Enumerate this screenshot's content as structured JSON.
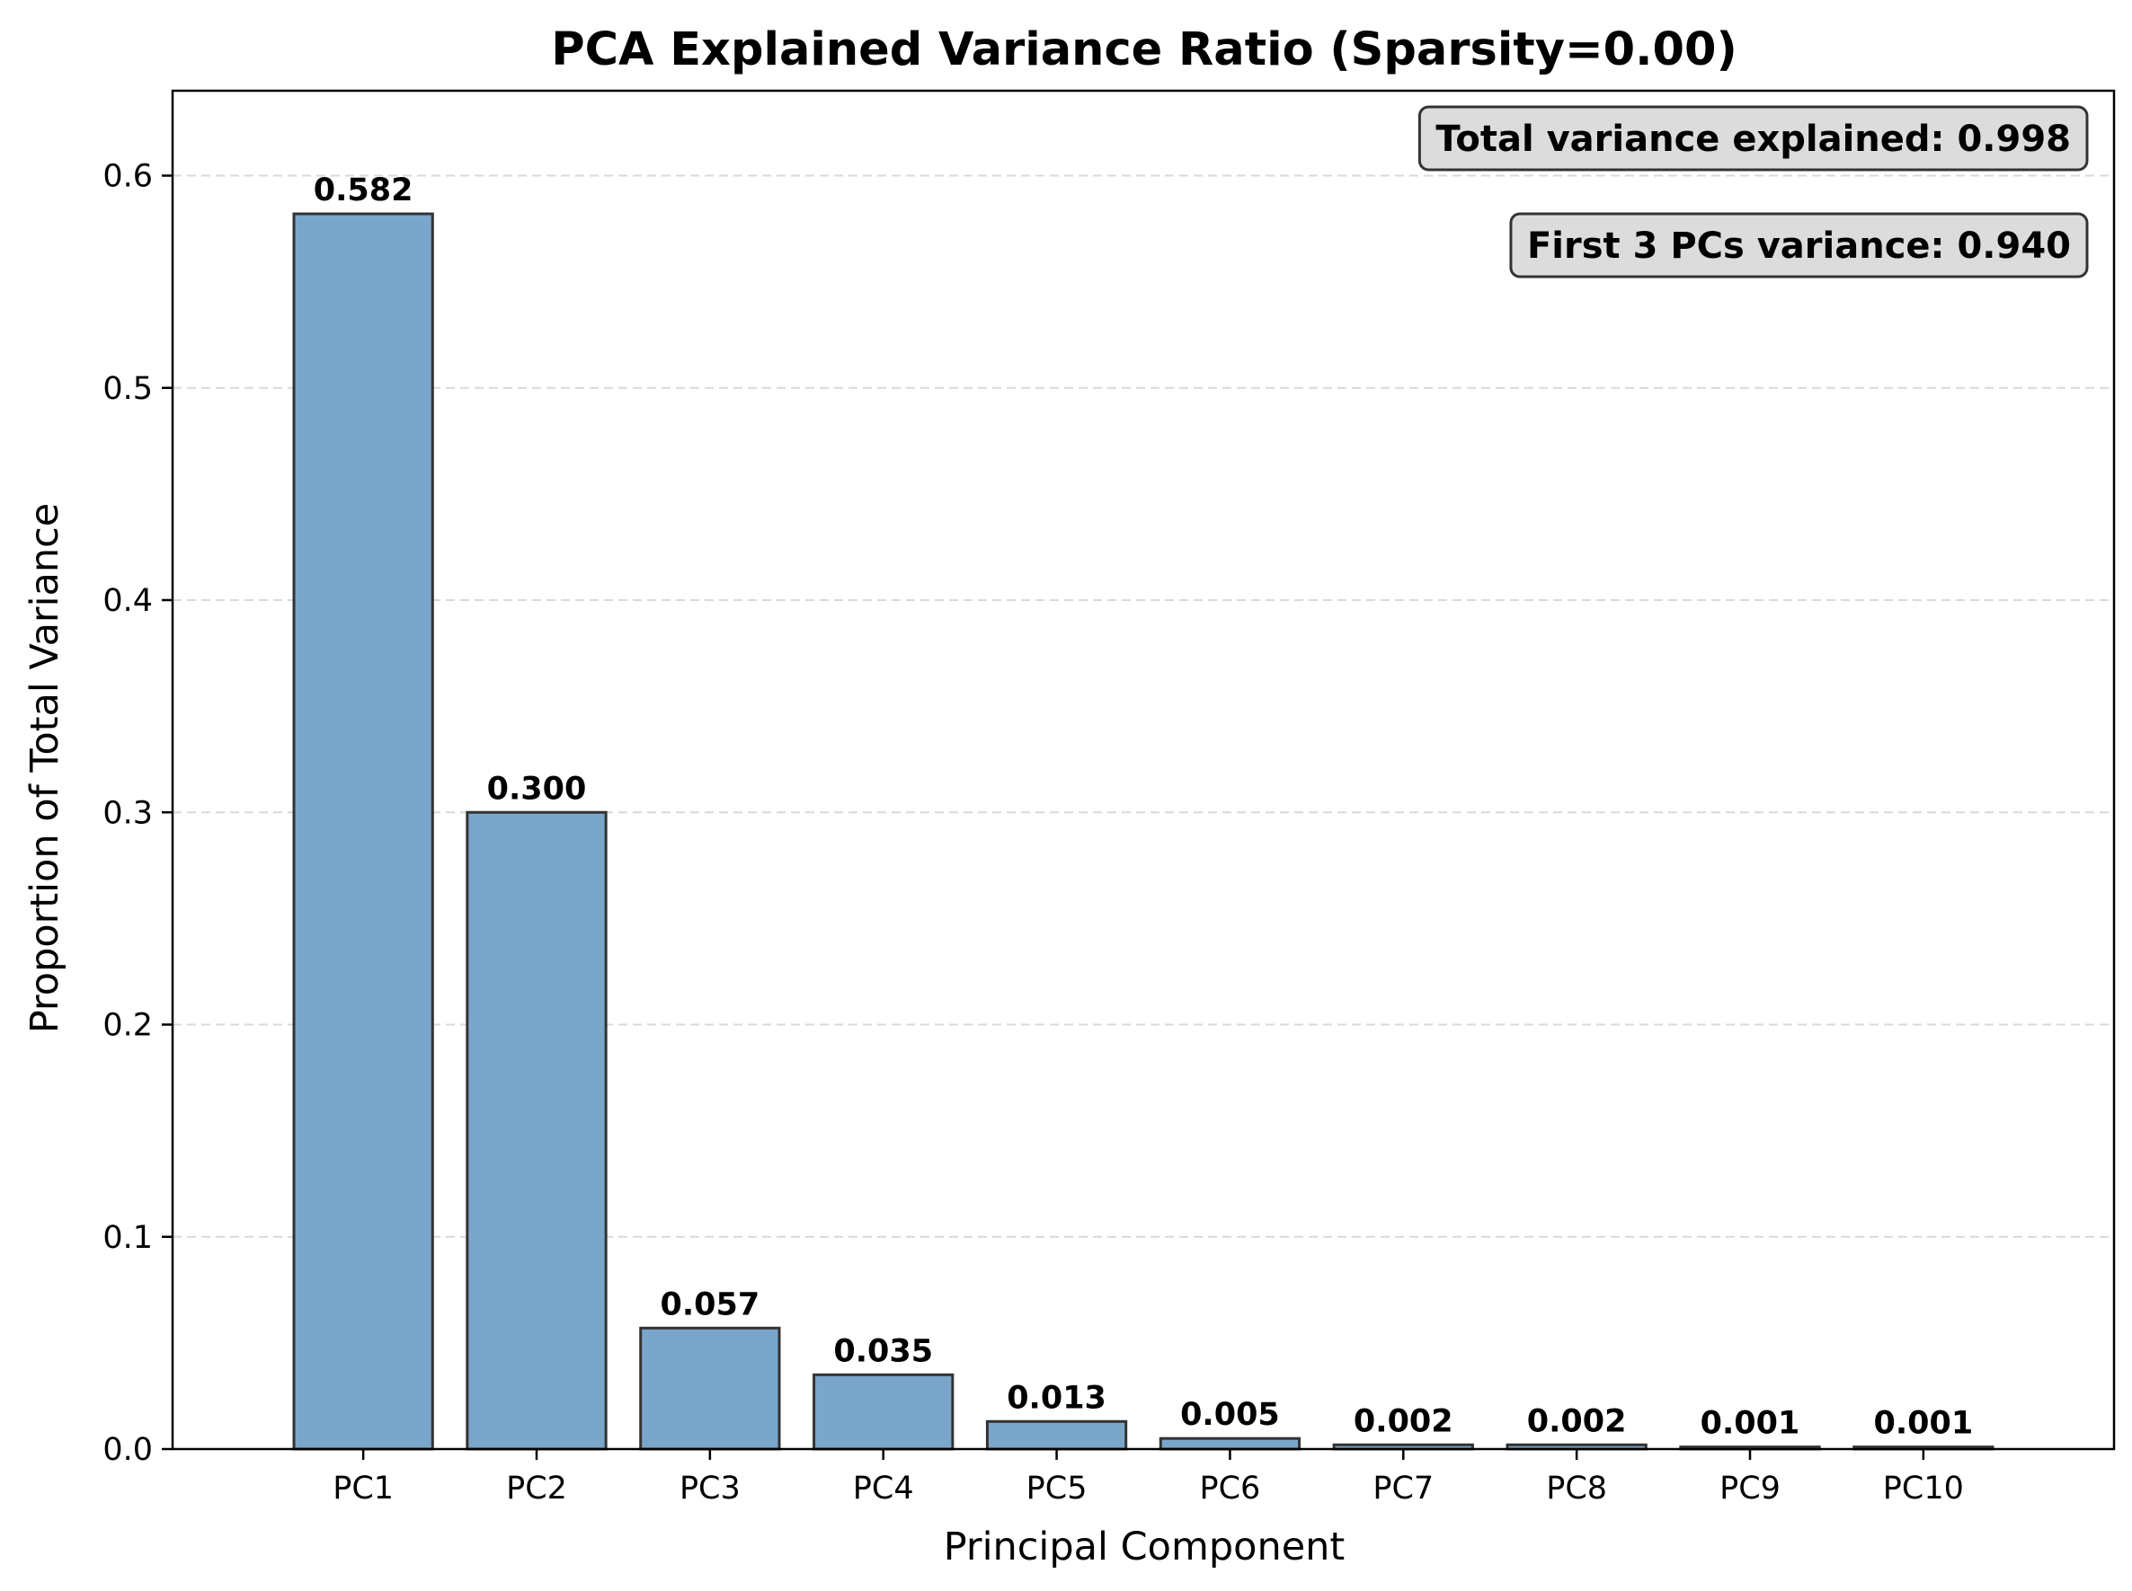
{
  "chart_data": {
    "type": "bar",
    "title": "PCA Explained Variance Ratio (Sparsity=0.00)",
    "xlabel": "Principal Component",
    "ylabel": "Proportion of Total Variance",
    "categories": [
      "PC1",
      "PC2",
      "PC3",
      "PC4",
      "PC5",
      "PC6",
      "PC7",
      "PC8",
      "PC9",
      "PC10"
    ],
    "values": [
      0.582,
      0.3,
      0.057,
      0.035,
      0.013,
      0.005,
      0.002,
      0.002,
      0.001,
      0.001
    ],
    "data_labels": [
      "0.582",
      "0.300",
      "0.057",
      "0.035",
      "0.013",
      "0.005",
      "0.002",
      "0.002",
      "0.001",
      "0.001"
    ],
    "ylim": [
      0,
      0.64
    ],
    "yticks": [
      0.0,
      0.1,
      0.2,
      0.3,
      0.4,
      0.5,
      0.6
    ],
    "ytick_labels": [
      "0.0",
      "0.1",
      "0.2",
      "0.3",
      "0.4",
      "0.5",
      "0.6"
    ],
    "grid": "y-dashed",
    "bar_color": "#7BA6CB",
    "bar_edge_color": "#333333",
    "annotations": [
      "Total variance explained: 0.998",
      "First 3 PCs variance: 0.940"
    ],
    "annotation_box_color": "#DCDCDC"
  }
}
